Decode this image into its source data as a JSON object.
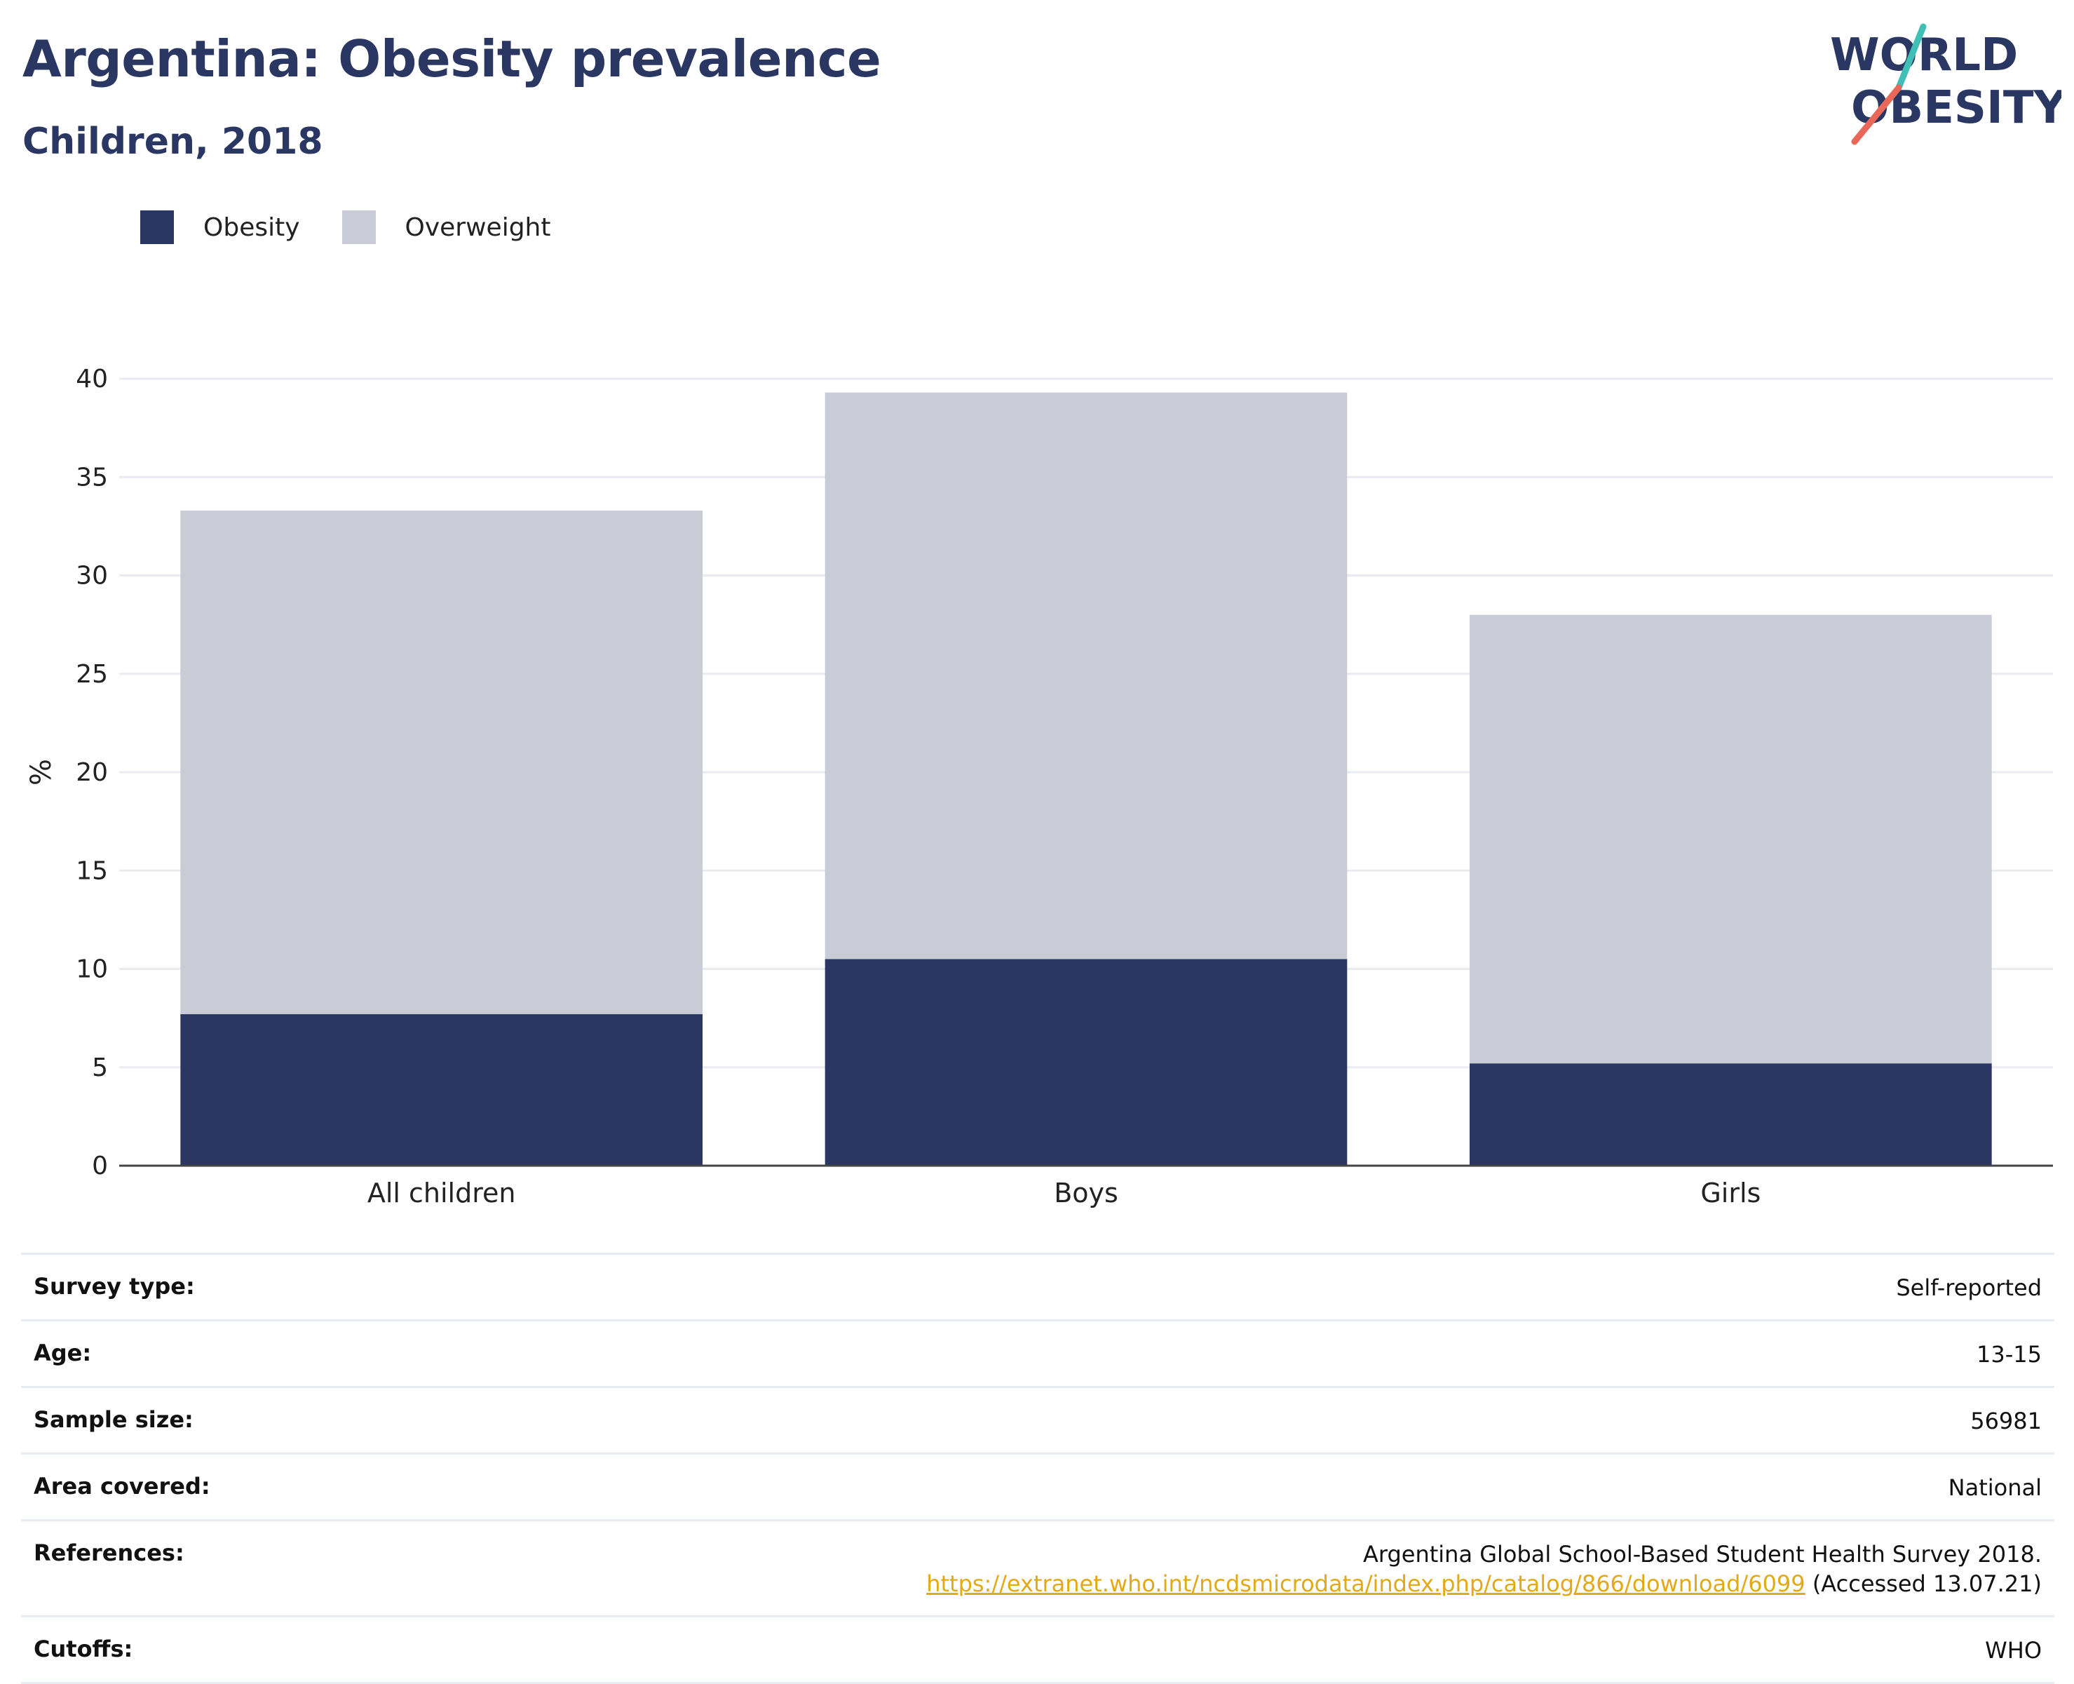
{
  "header": {
    "title": "Argentina: Obesity prevalence",
    "subtitle": "Children, 2018"
  },
  "logo": {
    "line1": "WORLD",
    "line2": "OBESITY"
  },
  "colors": {
    "obesity": "#2a3763",
    "overweight": "#c9cbd7",
    "title": "#2a3763",
    "link": "#e3a916",
    "logo_slash_teal": "#3fbfb6",
    "logo_slash_coral": "#e9685a"
  },
  "chart_data": {
    "type": "bar",
    "stacked": true,
    "categories": [
      "All children",
      "Boys",
      "Girls"
    ],
    "series": [
      {
        "name": "Obesity",
        "values": [
          7.7,
          10.5,
          5.2
        ]
      },
      {
        "name": "Overweight",
        "values": [
          25.6,
          28.8,
          22.8
        ]
      }
    ],
    "ylabel": "%",
    "ylim": [
      0,
      40
    ],
    "yticks": [
      0,
      5,
      10,
      15,
      20,
      25,
      30,
      35,
      40
    ],
    "grid": true,
    "legend": "top-left"
  },
  "meta": {
    "survey_type": {
      "label": "Survey type:",
      "value": "Self-reported"
    },
    "age": {
      "label": "Age:",
      "value": "13-15"
    },
    "sample_size": {
      "label": "Sample size:",
      "value": "56981"
    },
    "area": {
      "label": "Area covered:",
      "value": "National"
    },
    "references": {
      "label": "References:",
      "text": "Argentina Global School-Based Student Health Survey 2018.",
      "link": "https://extranet.who.int/ncdsmicrodata/index.php/catalog/866/download/6099",
      "accessed": "(Accessed 13.07.21)"
    },
    "cutoffs": {
      "label": "Cutoffs:",
      "value": "WHO"
    }
  }
}
